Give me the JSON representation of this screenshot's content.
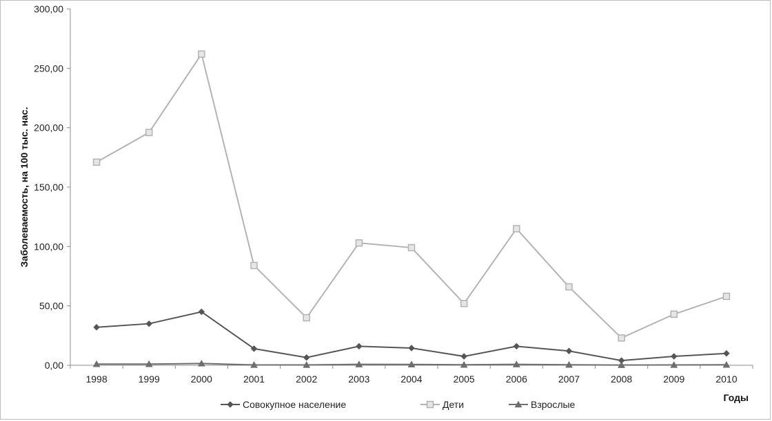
{
  "chart_data": {
    "type": "line",
    "title": "",
    "xlabel": "Годы",
    "ylabel": "Заболеваемость, на 100 тыс. нас.",
    "ylim": [
      0,
      300
    ],
    "yticks": [
      "0,00",
      "50,00",
      "100,00",
      "150,00",
      "200,00",
      "250,00",
      "300,00"
    ],
    "categories": [
      "1998",
      "1999",
      "2000",
      "2001",
      "2002",
      "2003",
      "2004",
      "2005",
      "2006",
      "2007",
      "2008",
      "2009",
      "2010"
    ],
    "grid": false,
    "legend_position": "bottom",
    "series": [
      {
        "name": "Совокупное население",
        "marker": "diamond",
        "color": "#555555",
        "values": [
          32,
          35,
          45,
          14,
          6.5,
          16,
          14.5,
          7.5,
          16,
          12,
          4,
          7.5,
          10
        ]
      },
      {
        "name": "Дети",
        "marker": "square",
        "color": "#b3b3b3",
        "values": [
          171,
          196,
          262,
          84,
          40,
          103,
          99,
          52,
          115,
          66,
          23,
          43,
          58
        ]
      },
      {
        "name": "Взрослые",
        "marker": "triangle",
        "color": "#6e6e6e",
        "values": [
          1,
          1,
          1.5,
          0.3,
          0.3,
          0.8,
          0.7,
          0.4,
          0.8,
          0.4,
          0.2,
          0.3,
          0.4
        ]
      }
    ]
  }
}
